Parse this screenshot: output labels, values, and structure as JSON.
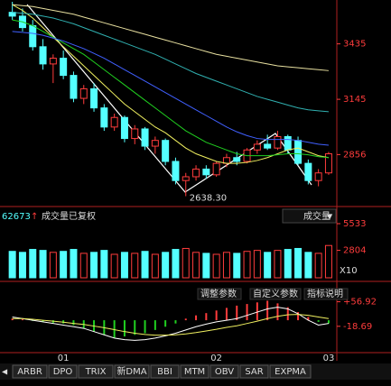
{
  "chart_data": [
    {
      "type": "candlestick",
      "open": [
        3600,
        3580,
        3530,
        3420,
        3330,
        3360,
        3270,
        3150,
        3200,
        3100,
        3000,
        3050,
        2940,
        2990,
        2900,
        2930,
        2820,
        2720,
        2740,
        2780,
        2750,
        2810,
        2840,
        2820,
        2880,
        2910,
        2890,
        2950,
        2930,
        2810,
        2720,
        2760
      ],
      "high": [
        3655,
        3620,
        3560,
        3460,
        3380,
        3400,
        3290,
        3220,
        3230,
        3120,
        3070,
        3060,
        3010,
        3000,
        2950,
        2940,
        2840,
        2760,
        2800,
        2800,
        2820,
        2860,
        2870,
        2890,
        2930,
        2960,
        2980,
        2960,
        2950,
        2830,
        2780,
        2870
      ],
      "low": [
        3560,
        3500,
        3400,
        3300,
        3230,
        3250,
        3130,
        3120,
        3080,
        2980,
        2980,
        2920,
        2910,
        2880,
        2860,
        2800,
        2700,
        2638.3,
        2720,
        2730,
        2740,
        2790,
        2800,
        2810,
        2860,
        2880,
        2880,
        2860,
        2800,
        2700,
        2690,
        2750
      ],
      "close": [
        3580,
        3520,
        3420,
        3330,
        3360,
        3270,
        3150,
        3200,
        3100,
        3000,
        3050,
        2940,
        2990,
        2900,
        2930,
        2820,
        2720,
        2740,
        2780,
        2750,
        2810,
        2840,
        2820,
        2880,
        2910,
        2890,
        2950,
        2880,
        2810,
        2720,
        2760,
        2860
      ],
      "up_color": "#ff3c3c",
      "down_color": "#54ffff",
      "lines": [
        {
          "color": "#f0f060",
          "values": [
            3640,
            3610,
            3570,
            3520,
            3470,
            3420,
            3370,
            3320,
            3270,
            3220,
            3170,
            3120,
            3080,
            3040,
            3000,
            2970,
            2930,
            2890,
            2860,
            2840,
            2820,
            2810,
            2810,
            2815,
            2825,
            2840,
            2860,
            2880,
            2890,
            2870,
            2850,
            2840
          ]
        },
        {
          "color": "#20d020",
          "values": [
            3560,
            3550,
            3530,
            3500,
            3470,
            3440,
            3410,
            3380,
            3340,
            3300,
            3260,
            3220,
            3180,
            3140,
            3100,
            3060,
            3020,
            2980,
            2950,
            2920,
            2900,
            2880,
            2860,
            2850,
            2850,
            2850,
            2855,
            2860,
            2860,
            2855,
            2845,
            2840
          ]
        },
        {
          "color": "#4060ff",
          "values": [
            3500,
            3495,
            3490,
            3480,
            3465,
            3450,
            3430,
            3410,
            3385,
            3360,
            3330,
            3300,
            3270,
            3240,
            3210,
            3180,
            3150,
            3120,
            3090,
            3060,
            3030,
            3000,
            2975,
            2955,
            2940,
            2935,
            2935,
            2935,
            2930,
            2920,
            2910,
            2905
          ]
        },
        {
          "color": "#30b0b0",
          "values": [
            3600,
            3595,
            3590,
            3580,
            3570,
            3555,
            3540,
            3520,
            3500,
            3480,
            3460,
            3440,
            3420,
            3400,
            3380,
            3355,
            3330,
            3305,
            3280,
            3260,
            3240,
            3220,
            3200,
            3180,
            3160,
            3145,
            3130,
            3115,
            3100,
            3090,
            3085,
            3080
          ]
        },
        {
          "color": "#e8e0a0",
          "values": [
            3640,
            3635,
            3630,
            3620,
            3610,
            3600,
            3590,
            3575,
            3560,
            3545,
            3530,
            3515,
            3500,
            3485,
            3470,
            3455,
            3440,
            3425,
            3410,
            3395,
            3380,
            3370,
            3360,
            3350,
            3340,
            3330,
            3320,
            3315,
            3310,
            3305,
            3300,
            3295
          ]
        }
      ],
      "min_label": "2638.30",
      "ylim": [
        2603,
        3655
      ],
      "yticks": [
        3435,
        3145,
        2856
      ],
      "tick_color": "#ff3c3c"
    },
    {
      "type": "bar",
      "header_value": "62673",
      "title": "成交量已复权",
      "selector": "成交量",
      "values": [
        2700,
        2600,
        2900,
        2800,
        2600,
        2700,
        2900,
        2500,
        2600,
        2800,
        2400,
        2600,
        2500,
        2700,
        2400,
        2600,
        2900,
        3000,
        2600,
        2500,
        2400,
        2600,
        2500,
        2700,
        2800,
        2600,
        2800,
        2900,
        3000,
        2600,
        2500,
        3300
      ],
      "ylim": [
        0,
        5533
      ],
      "yticks": [
        5533,
        2804
      ],
      "unit_label": "X10",
      "tick_color": "#ff3c3c"
    },
    {
      "type": "macd",
      "categories": [
        null,
        null,
        null,
        null,
        null,
        "01",
        null,
        null,
        null,
        null,
        null,
        null,
        null,
        null,
        null,
        null,
        null,
        null,
        null,
        null,
        "02",
        null,
        null,
        null,
        null,
        null,
        null,
        null,
        null,
        null,
        null,
        "03"
      ],
      "histogram": [
        5,
        3,
        -2,
        -5,
        -8,
        -10,
        -15,
        -25,
        -35,
        -45,
        -55,
        -50,
        -45,
        -40,
        -30,
        -20,
        -10,
        5,
        15,
        22,
        30,
        38,
        45,
        50,
        55,
        60,
        52,
        40,
        25,
        10,
        -5,
        -10
      ],
      "pos_color": "#ff3c3c",
      "neg_color": "#20d020",
      "lines": [
        {
          "color": "#ffffff",
          "values": [
            10,
            5,
            0,
            -5,
            -10,
            -15,
            -20,
            -25,
            -35,
            -45,
            -55,
            -60,
            -62,
            -60,
            -55,
            -48,
            -40,
            -30,
            -20,
            -12,
            -5,
            0,
            5,
            15,
            25,
            35,
            40,
            35,
            20,
            0,
            -15,
            -10
          ]
        },
        {
          "color": "#f0f060",
          "values": [
            5,
            5,
            3,
            0,
            -3,
            -6,
            -10,
            -13,
            -18,
            -23,
            -29,
            -35,
            -40,
            -44,
            -46,
            -46,
            -45,
            -42,
            -38,
            -33,
            -28,
            -22,
            -17,
            -10,
            -3,
            5,
            12,
            17,
            18,
            15,
            10,
            5
          ]
        }
      ],
      "buttons": [
        "调整参数",
        "自定义参数",
        "指标说明"
      ],
      "ylim": [
        -97,
        103
      ],
      "yticks": [
        {
          "value": 56.92,
          "label": "+56.92"
        },
        {
          "value": -18.69,
          "label": "-18.69"
        }
      ],
      "tick_color": "#ff3c3c"
    }
  ],
  "tabs": [
    "ARBR",
    "DPO",
    "TRIX",
    "新DMA",
    "BBI",
    "MTM",
    "OBV",
    "SAR",
    "EXPMA"
  ]
}
